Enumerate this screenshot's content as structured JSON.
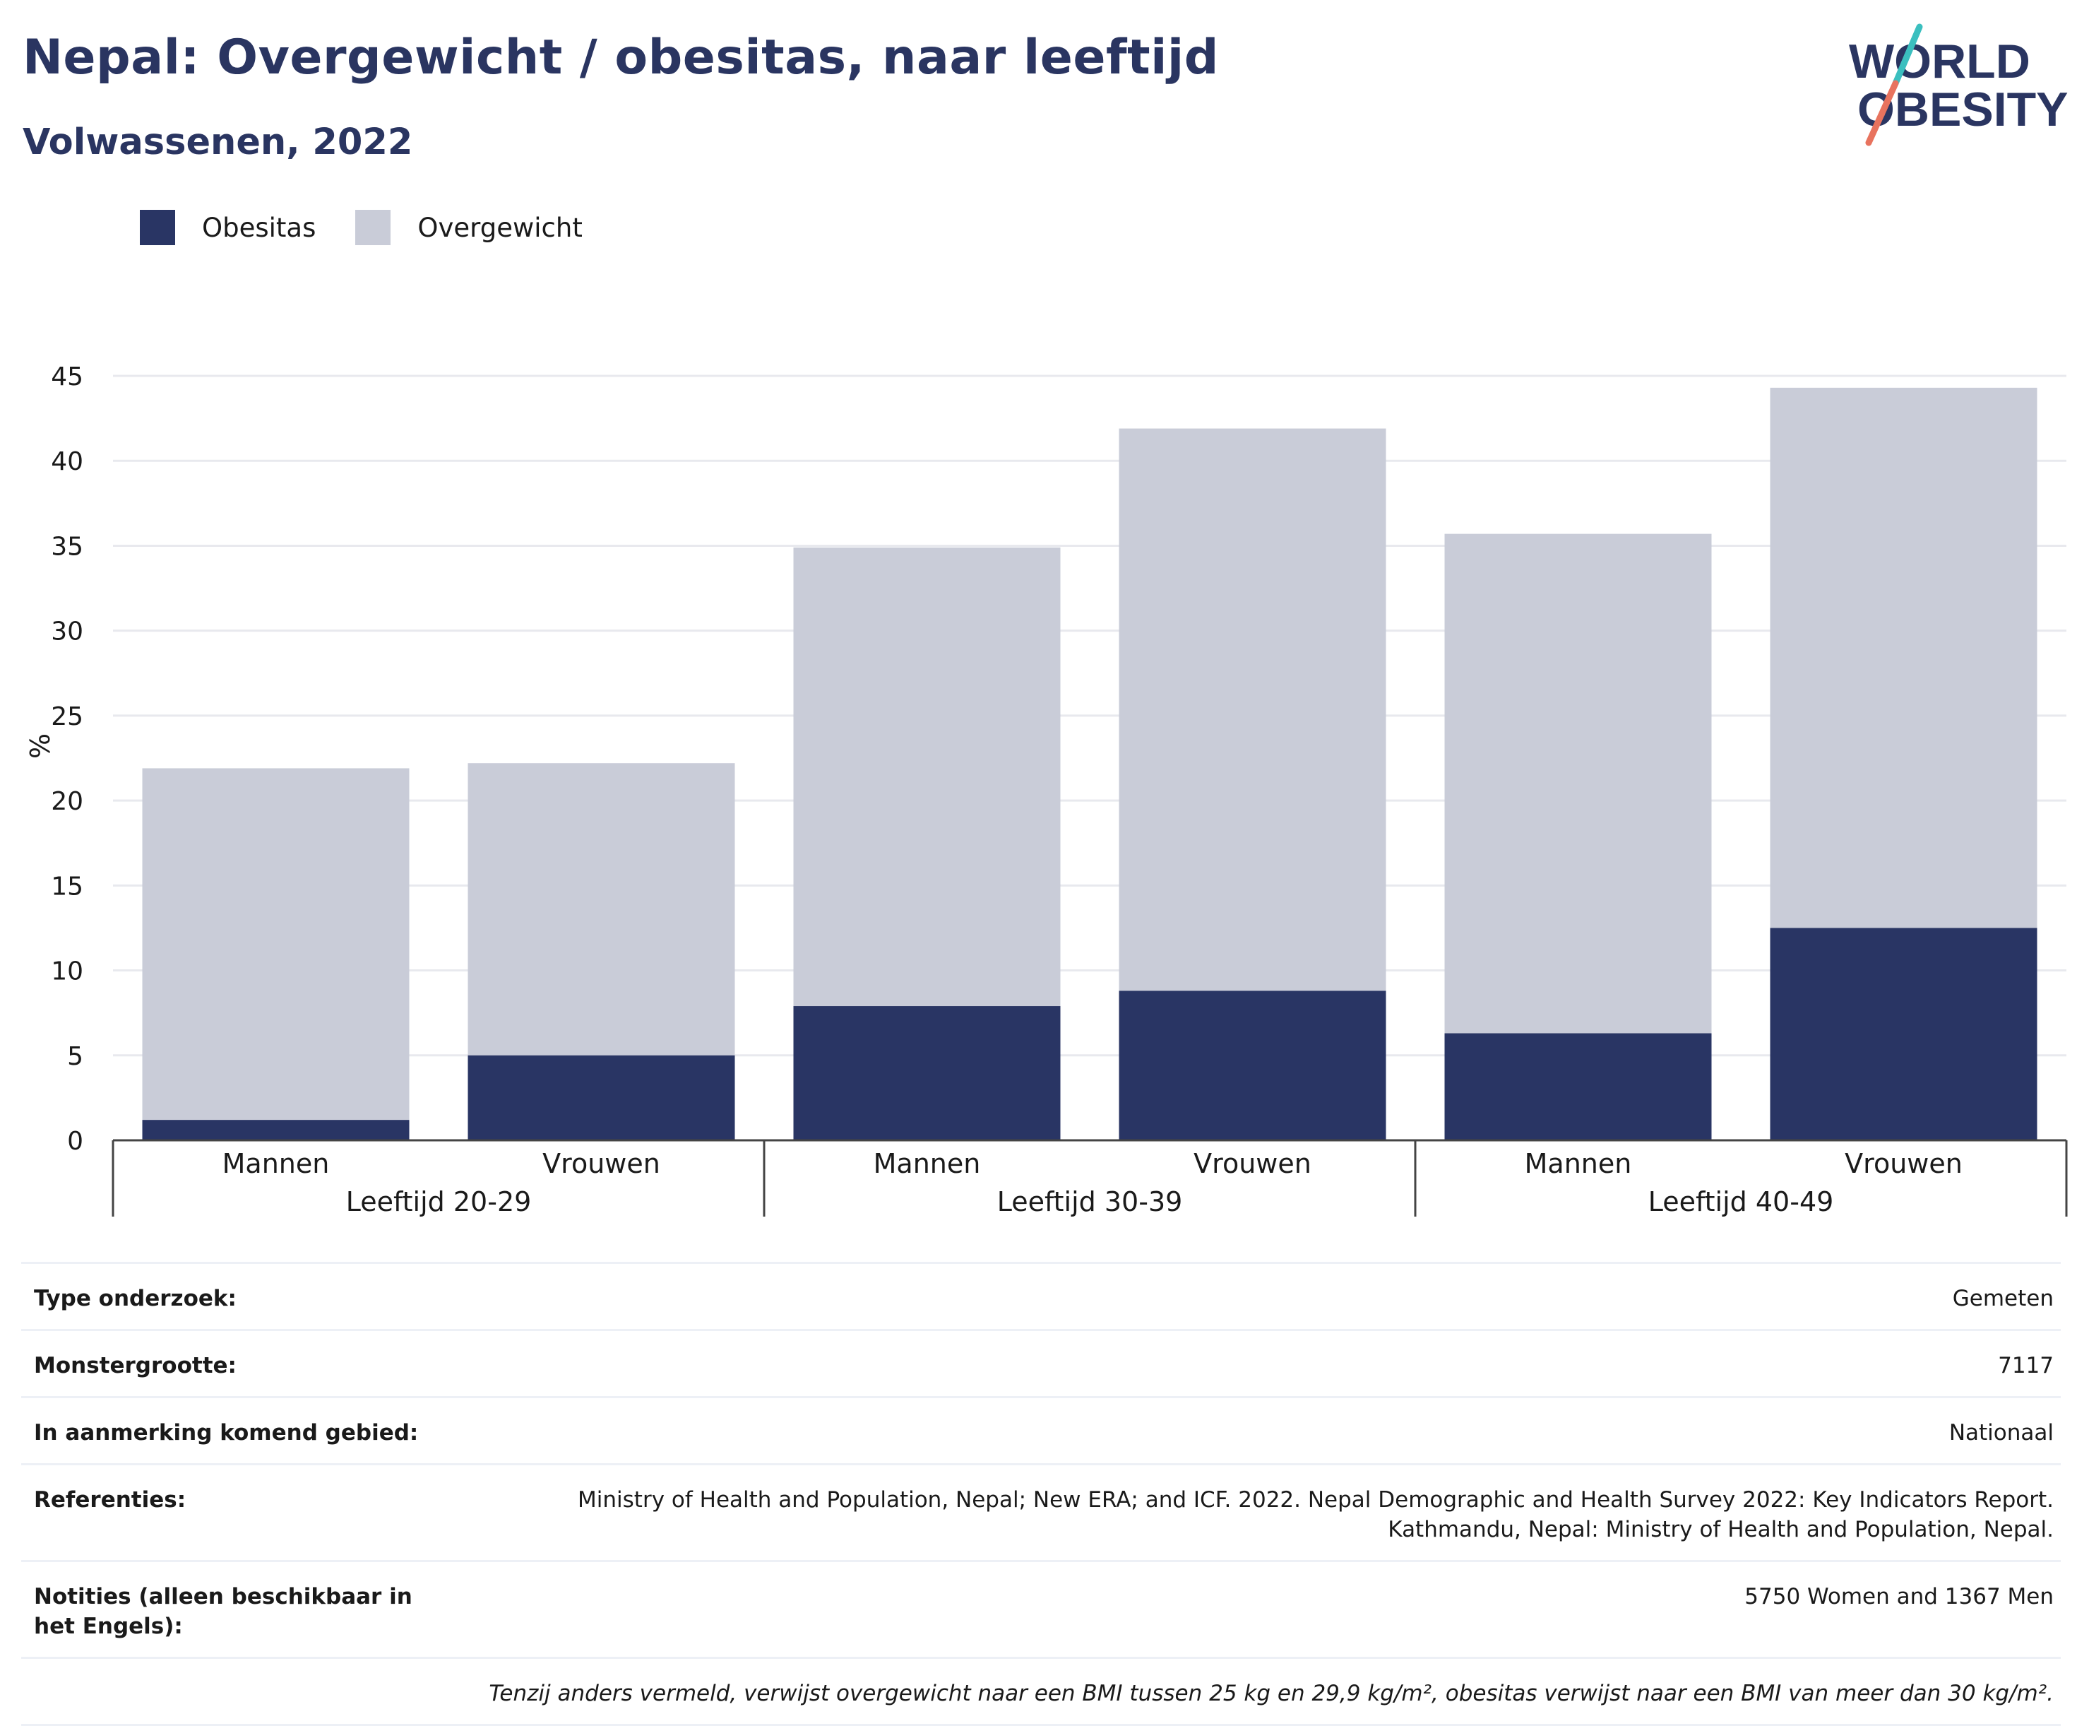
{
  "header": {
    "title": "Nepal: Overgewicht / obesitas, naar leeftijd",
    "subtitle": "Volwassenen, 2022"
  },
  "logo": {
    "line1": "WORLD",
    "line2": "OBESITY"
  },
  "colors": {
    "obesity": "#293564",
    "overweight": "#c9ccd8",
    "title": "#2a3561",
    "grid": "#e8e9ee"
  },
  "legend": {
    "items": [
      {
        "label": "Obesitas"
      },
      {
        "label": "Overgewicht"
      }
    ]
  },
  "chart_data": {
    "type": "bar",
    "stacked": true,
    "ylabel": "%",
    "ylim": [
      0,
      45
    ],
    "yticks": [
      0,
      5,
      10,
      15,
      20,
      25,
      30,
      35,
      40,
      45
    ],
    "grid": true,
    "legend_position": "top-left",
    "groups": [
      {
        "label": "Leeftijd 20-29",
        "categories": [
          "Mannen",
          "Vrouwen"
        ]
      },
      {
        "label": "Leeftijd 30-39",
        "categories": [
          "Mannen",
          "Vrouwen"
        ]
      },
      {
        "label": "Leeftijd 40-49",
        "categories": [
          "Mannen",
          "Vrouwen"
        ]
      }
    ],
    "series": [
      {
        "name": "Obesitas",
        "values": [
          1.2,
          5.0,
          7.9,
          8.8,
          6.3,
          12.5
        ]
      },
      {
        "name": "Overgewicht",
        "values": [
          20.7,
          17.2,
          27.0,
          33.1,
          29.4,
          31.8
        ]
      }
    ]
  },
  "info": {
    "rows": [
      {
        "key": "Type onderzoek:",
        "value": "Gemeten"
      },
      {
        "key": "Monstergrootte:",
        "value": "7117"
      },
      {
        "key": "In aanmerking komend gebied:",
        "value": "Nationaal"
      },
      {
        "key": "Referenties:",
        "value": "Ministry of Health and Population, Nepal; New ERA; and ICF. 2022. Nepal Demographic and Health Survey 2022: Key Indicators Report. Kathmandu, Nepal: Ministry of Health and Population, Nepal."
      },
      {
        "key": "Notities (alleen beschikbaar in het Engels):",
        "value": "5750 Women and 1367 Men"
      }
    ],
    "footnote": "Tenzij anders vermeld, verwijst overgewicht naar een BMI tussen 25 kg en 29,9 kg/m², obesitas verwijst naar een BMI van meer dan 30 kg/m²."
  }
}
